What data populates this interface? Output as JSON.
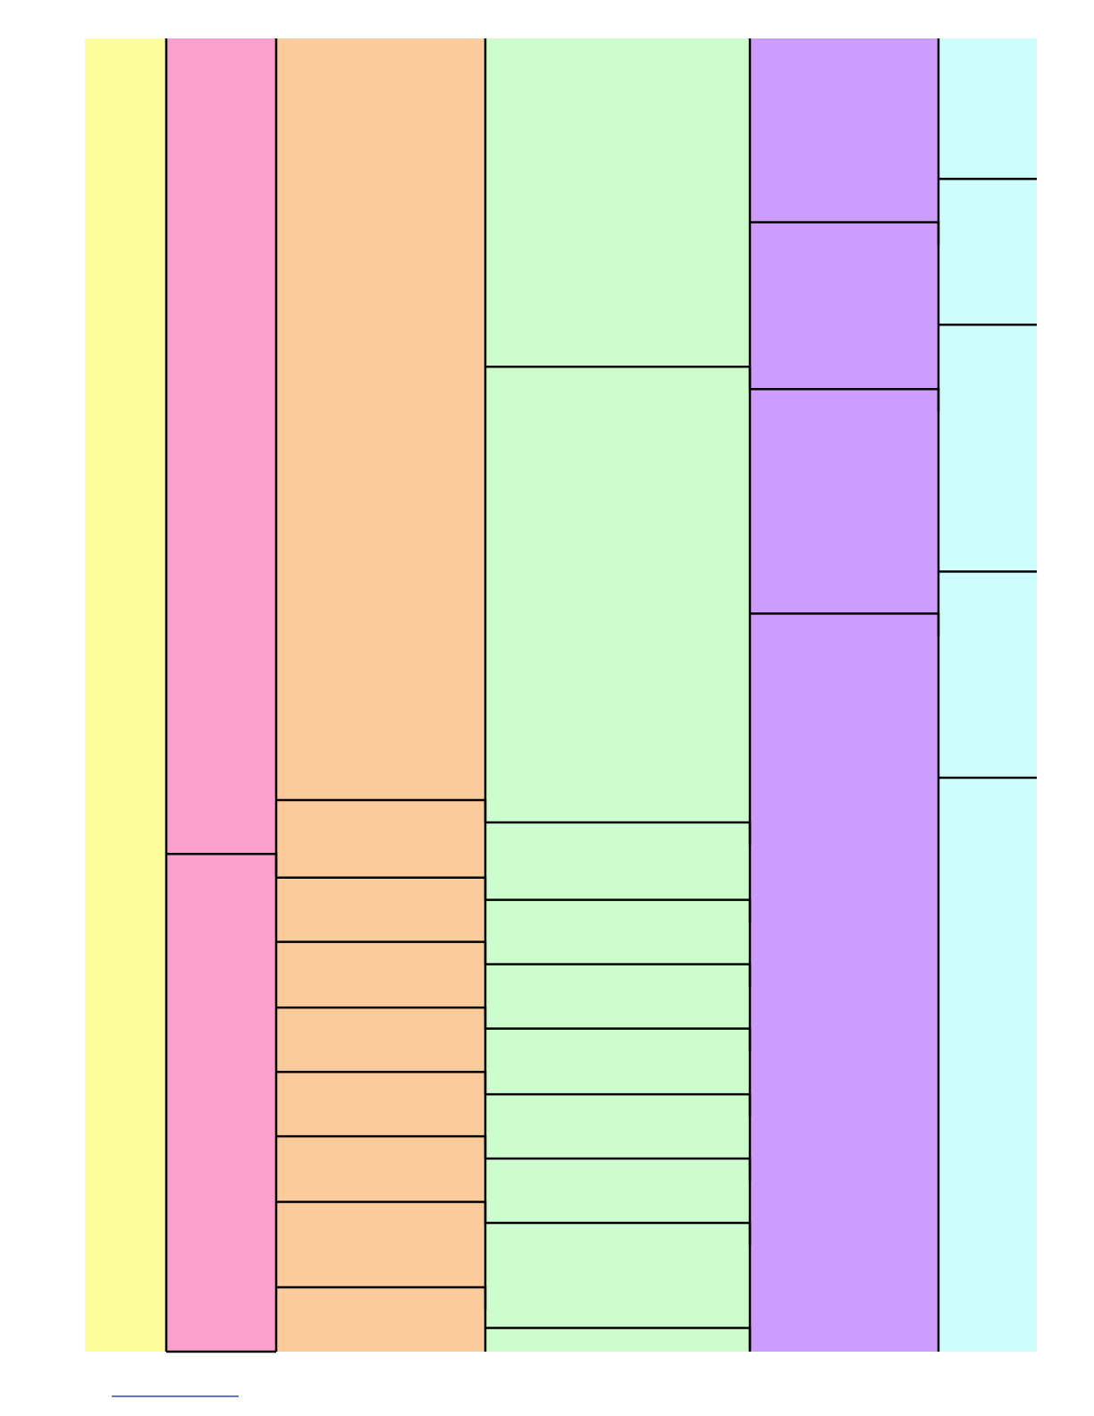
{
  "colors": {
    "page": "#ffffff",
    "line": "#000000",
    "link": "#3344cc"
  },
  "columns": [
    {
      "id": "column-1",
      "fill": "#fdfd9e",
      "boundaries": [],
      "boundary_style": "none"
    },
    {
      "id": "column-2",
      "fill": "#fd9fcd",
      "boundaries": [
        0.621
      ],
      "boundary_style": "step"
    },
    {
      "id": "column-3",
      "fill": "#fccb9c",
      "boundaries": [
        0.58,
        0.639,
        0.688,
        0.738,
        0.787,
        0.836,
        0.886,
        0.951
      ],
      "boundary_style": "step"
    },
    {
      "id": "column-4",
      "fill": "#cdfdcd",
      "boundaries": [
        0.25,
        0.597,
        0.656,
        0.705,
        0.754,
        0.804,
        0.853,
        0.902,
        0.982
      ],
      "boundary_style": "step"
    },
    {
      "id": "column-5",
      "fill": "#cc9dfd",
      "boundaries": [
        0.14,
        0.267,
        0.438
      ],
      "boundary_style": "step"
    },
    {
      "id": "column-6",
      "fill": "#cdfdfd",
      "boundaries": [
        0.107,
        0.218,
        0.406,
        0.563
      ],
      "boundary_style": "flat"
    }
  ]
}
